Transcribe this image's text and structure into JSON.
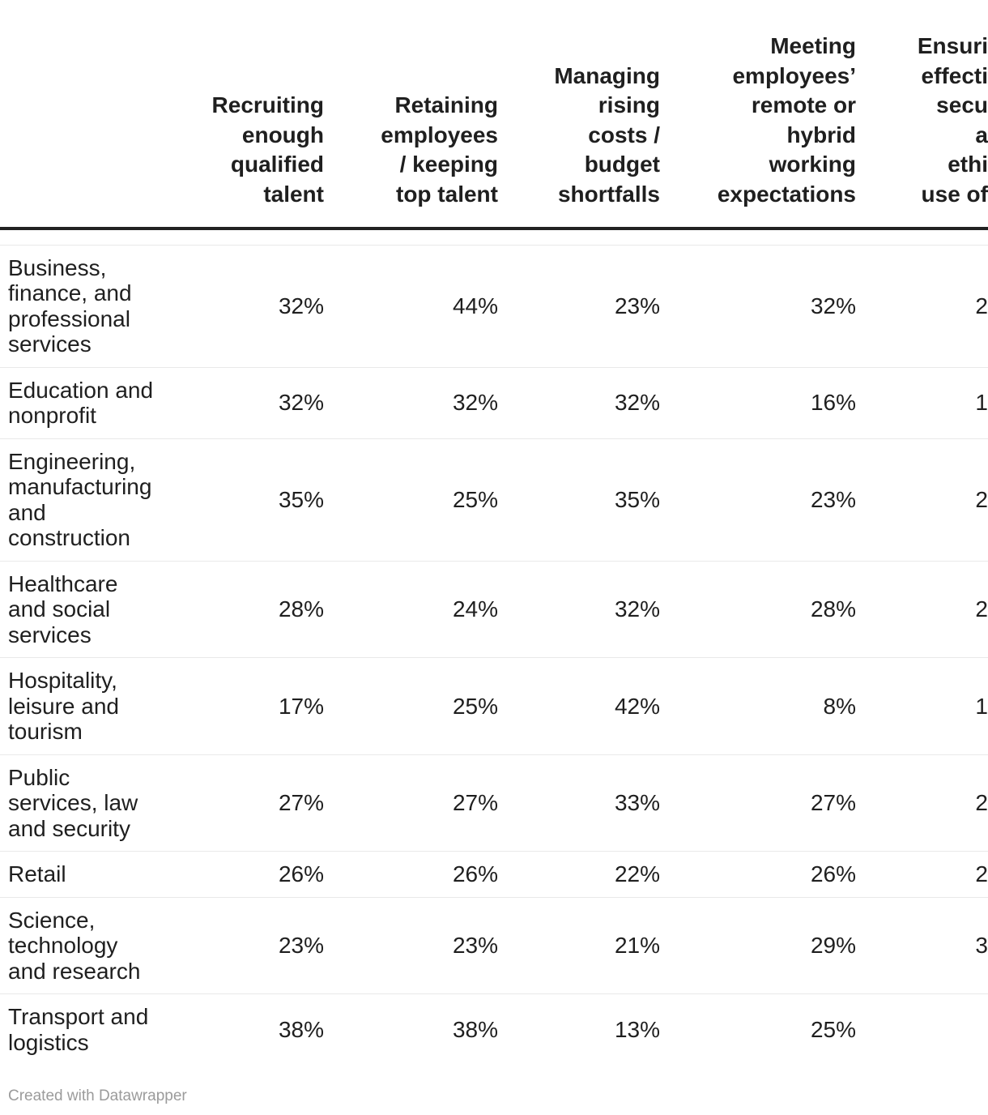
{
  "table": {
    "header": {
      "corner": "",
      "columns": [
        {
          "lines": [
            "Recruiting",
            "enough",
            "qualified",
            "talent"
          ],
          "truncated": false
        },
        {
          "lines": [
            "Retaining",
            "employees",
            "/ keeping",
            "top talent"
          ],
          "truncated": false
        },
        {
          "lines": [
            "Managing",
            "rising",
            "costs /",
            "budget",
            "shortfalls"
          ],
          "truncated": false
        },
        {
          "lines": [
            "Meeting",
            "employees’",
            "remote or",
            "hybrid",
            "working",
            "expectations"
          ],
          "truncated": false
        },
        {
          "lines": [
            "Ensuri",
            "effecti",
            "secu",
            "a",
            "ethi",
            "use of"
          ],
          "truncated": true
        }
      ]
    },
    "rows": [
      {
        "label_lines": [
          "Business,",
          "finance, and",
          "professional",
          "services"
        ],
        "values": [
          "32%",
          "44%",
          "23%",
          "32%",
          "2"
        ]
      },
      {
        "label_lines": [
          "Education and",
          "nonprofit"
        ],
        "values": [
          "32%",
          "32%",
          "32%",
          "16%",
          "1"
        ]
      },
      {
        "label_lines": [
          "Engineering,",
          "manufacturing",
          "and",
          "construction"
        ],
        "values": [
          "35%",
          "25%",
          "35%",
          "23%",
          "2"
        ]
      },
      {
        "label_lines": [
          "Healthcare",
          "and social",
          "services"
        ],
        "values": [
          "28%",
          "24%",
          "32%",
          "28%",
          "2"
        ]
      },
      {
        "label_lines": [
          "Hospitality,",
          "leisure and",
          "tourism"
        ],
        "values": [
          "17%",
          "25%",
          "42%",
          "8%",
          "1"
        ]
      },
      {
        "label_lines": [
          "Public",
          "services, law",
          "and security"
        ],
        "values": [
          "27%",
          "27%",
          "33%",
          "27%",
          "2"
        ]
      },
      {
        "label_lines": [
          "Retail"
        ],
        "values": [
          "26%",
          "26%",
          "22%",
          "26%",
          "2"
        ]
      },
      {
        "label_lines": [
          "Science,",
          "technology",
          "and research"
        ],
        "values": [
          "23%",
          "23%",
          "21%",
          "29%",
          "3"
        ]
      },
      {
        "label_lines": [
          "Transport and",
          "logistics"
        ],
        "values": [
          "38%",
          "38%",
          "13%",
          "25%",
          ""
        ]
      }
    ]
  },
  "footer": {
    "credit": "Created with Datawrapper"
  },
  "colors": {
    "text": "#1f1f1f",
    "header_rule": "#222222",
    "row_rule": "#e9e9e9",
    "credit_gray": "#9b9b9b",
    "background": "#ffffff"
  },
  "chart_data": {
    "type": "table",
    "title": "",
    "categories": [
      "Business, finance, and professional services",
      "Education and nonprofit",
      "Engineering, manufacturing and construction",
      "Healthcare and social services",
      "Hospitality, leisure and tourism",
      "Public services, law and security",
      "Retail",
      "Science, technology and research",
      "Transport and logistics"
    ],
    "series": [
      {
        "name": "Recruiting enough qualified talent",
        "values": [
          "32%",
          "32%",
          "35%",
          "28%",
          "17%",
          "27%",
          "26%",
          "23%",
          "38%"
        ]
      },
      {
        "name": "Retaining employees / keeping top talent",
        "values": [
          "44%",
          "32%",
          "25%",
          "24%",
          "25%",
          "27%",
          "26%",
          "23%",
          "38%"
        ]
      },
      {
        "name": "Managing rising costs / budget shortfalls",
        "values": [
          "23%",
          "32%",
          "35%",
          "32%",
          "42%",
          "33%",
          "22%",
          "21%",
          "13%"
        ]
      },
      {
        "name": "Meeting employees’ remote or hybrid working expectations",
        "values": [
          "32%",
          "16%",
          "23%",
          "28%",
          "8%",
          "27%",
          "26%",
          "29%",
          "25%"
        ]
      },
      {
        "name": "Ensuri effecti secu a ethi use of",
        "values": [
          "2",
          "1",
          "2",
          "2",
          "1",
          "2",
          "2",
          "3",
          ""
        ]
      }
    ],
    "layout_hints": {
      "grid": "horizontal row separators",
      "header_alignment": "right",
      "last_column_clipped": true
    }
  }
}
